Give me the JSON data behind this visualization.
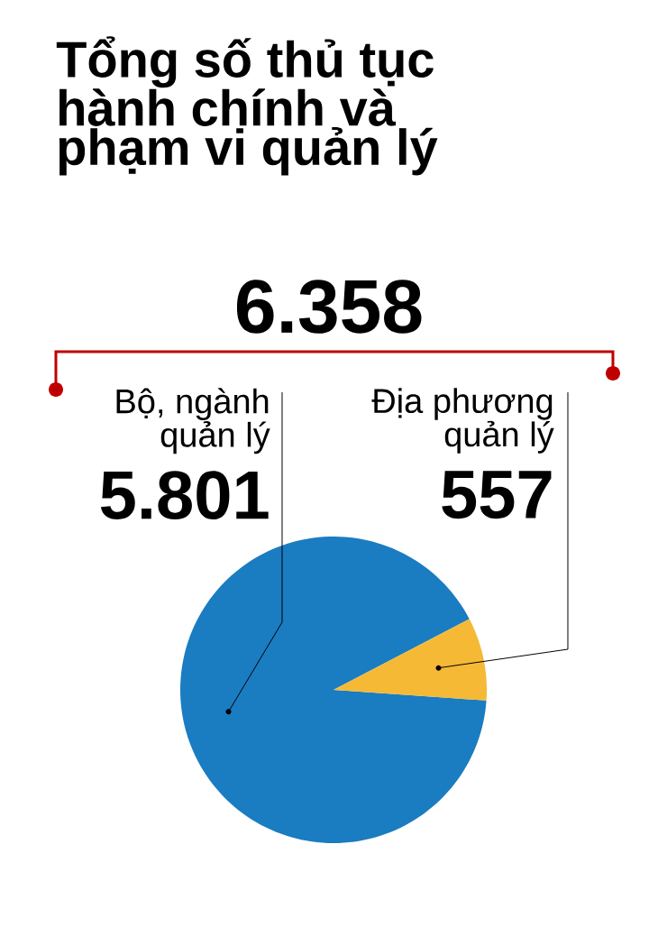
{
  "chart_data": {
    "type": "pie",
    "title": "Tổng số thủ tục hành chính và phạm vi quản lý",
    "categories": [
      "Bộ, ngành quản lý",
      "Địa phương quản lý"
    ],
    "values": [
      5801,
      557
    ],
    "colors": [
      "#1a7cc1",
      "#f5b936"
    ],
    "value_labels": [
      "5.801",
      "557"
    ],
    "annotations": [
      "6.358"
    ]
  }
}
